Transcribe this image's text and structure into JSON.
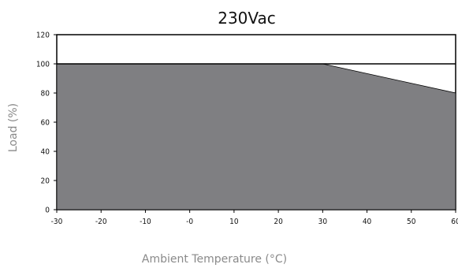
{
  "chart_data": {
    "type": "area",
    "title": "230Vac",
    "xlabel": "Ambient Temperature (°C)",
    "ylabel": "Load (%)",
    "xlim": [
      -30,
      60
    ],
    "ylim": [
      0,
      120
    ],
    "x_ticks": [
      "-30",
      "-20",
      "-10",
      "-0",
      "10",
      "20",
      "30",
      "40",
      "50",
      "60"
    ],
    "y_ticks": [
      "0",
      "20",
      "40",
      "60",
      "80",
      "100",
      "120"
    ],
    "grid": false,
    "series": [
      {
        "x": [
          -30,
          30,
          60
        ],
        "y": [
          100,
          100,
          80
        ],
        "color": "#7f7f82"
      }
    ],
    "reference_lines": [
      {
        "y": 100
      }
    ]
  }
}
